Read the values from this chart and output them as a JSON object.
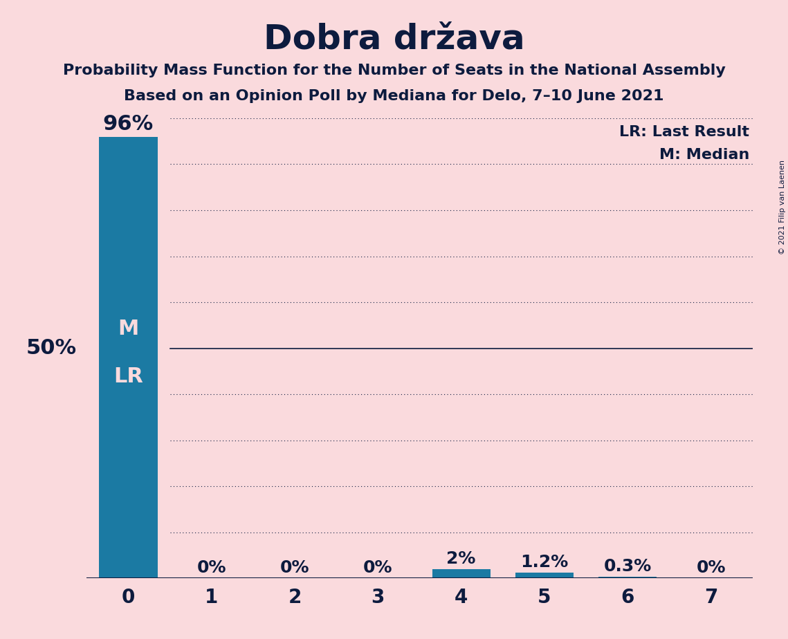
{
  "title": "Dobra država",
  "subtitle1": "Probability Mass Function for the Number of Seats in the National Assembly",
  "subtitle2": "Based on an Opinion Poll by Mediana for Delo, 7–10 June 2021",
  "copyright": "© 2021 Filip van Laenen",
  "categories": [
    0,
    1,
    2,
    3,
    4,
    5,
    6,
    7
  ],
  "values": [
    96,
    0,
    0,
    0,
    2,
    1.2,
    0.3,
    0
  ],
  "bar_color": "#1b7aa3",
  "background_color": "#fadadd",
  "text_color": "#0d1b3e",
  "bar_label_color_light": "#fadadd",
  "ylim": [
    0,
    100
  ],
  "yticks": [
    0,
    10,
    20,
    30,
    40,
    50,
    60,
    70,
    80,
    90,
    100
  ],
  "fifty_pct_label": "50%",
  "legend_lr": "LR: Last Result",
  "legend_m": "M: Median",
  "title_fontsize": 36,
  "subtitle_fontsize": 16,
  "tick_fontsize": 20,
  "label_fontsize_large": 22,
  "label_fontsize_small": 18,
  "fifty_fontsize": 22,
  "legend_fontsize": 16,
  "copyright_fontsize": 8,
  "ml_fontsize": 22
}
